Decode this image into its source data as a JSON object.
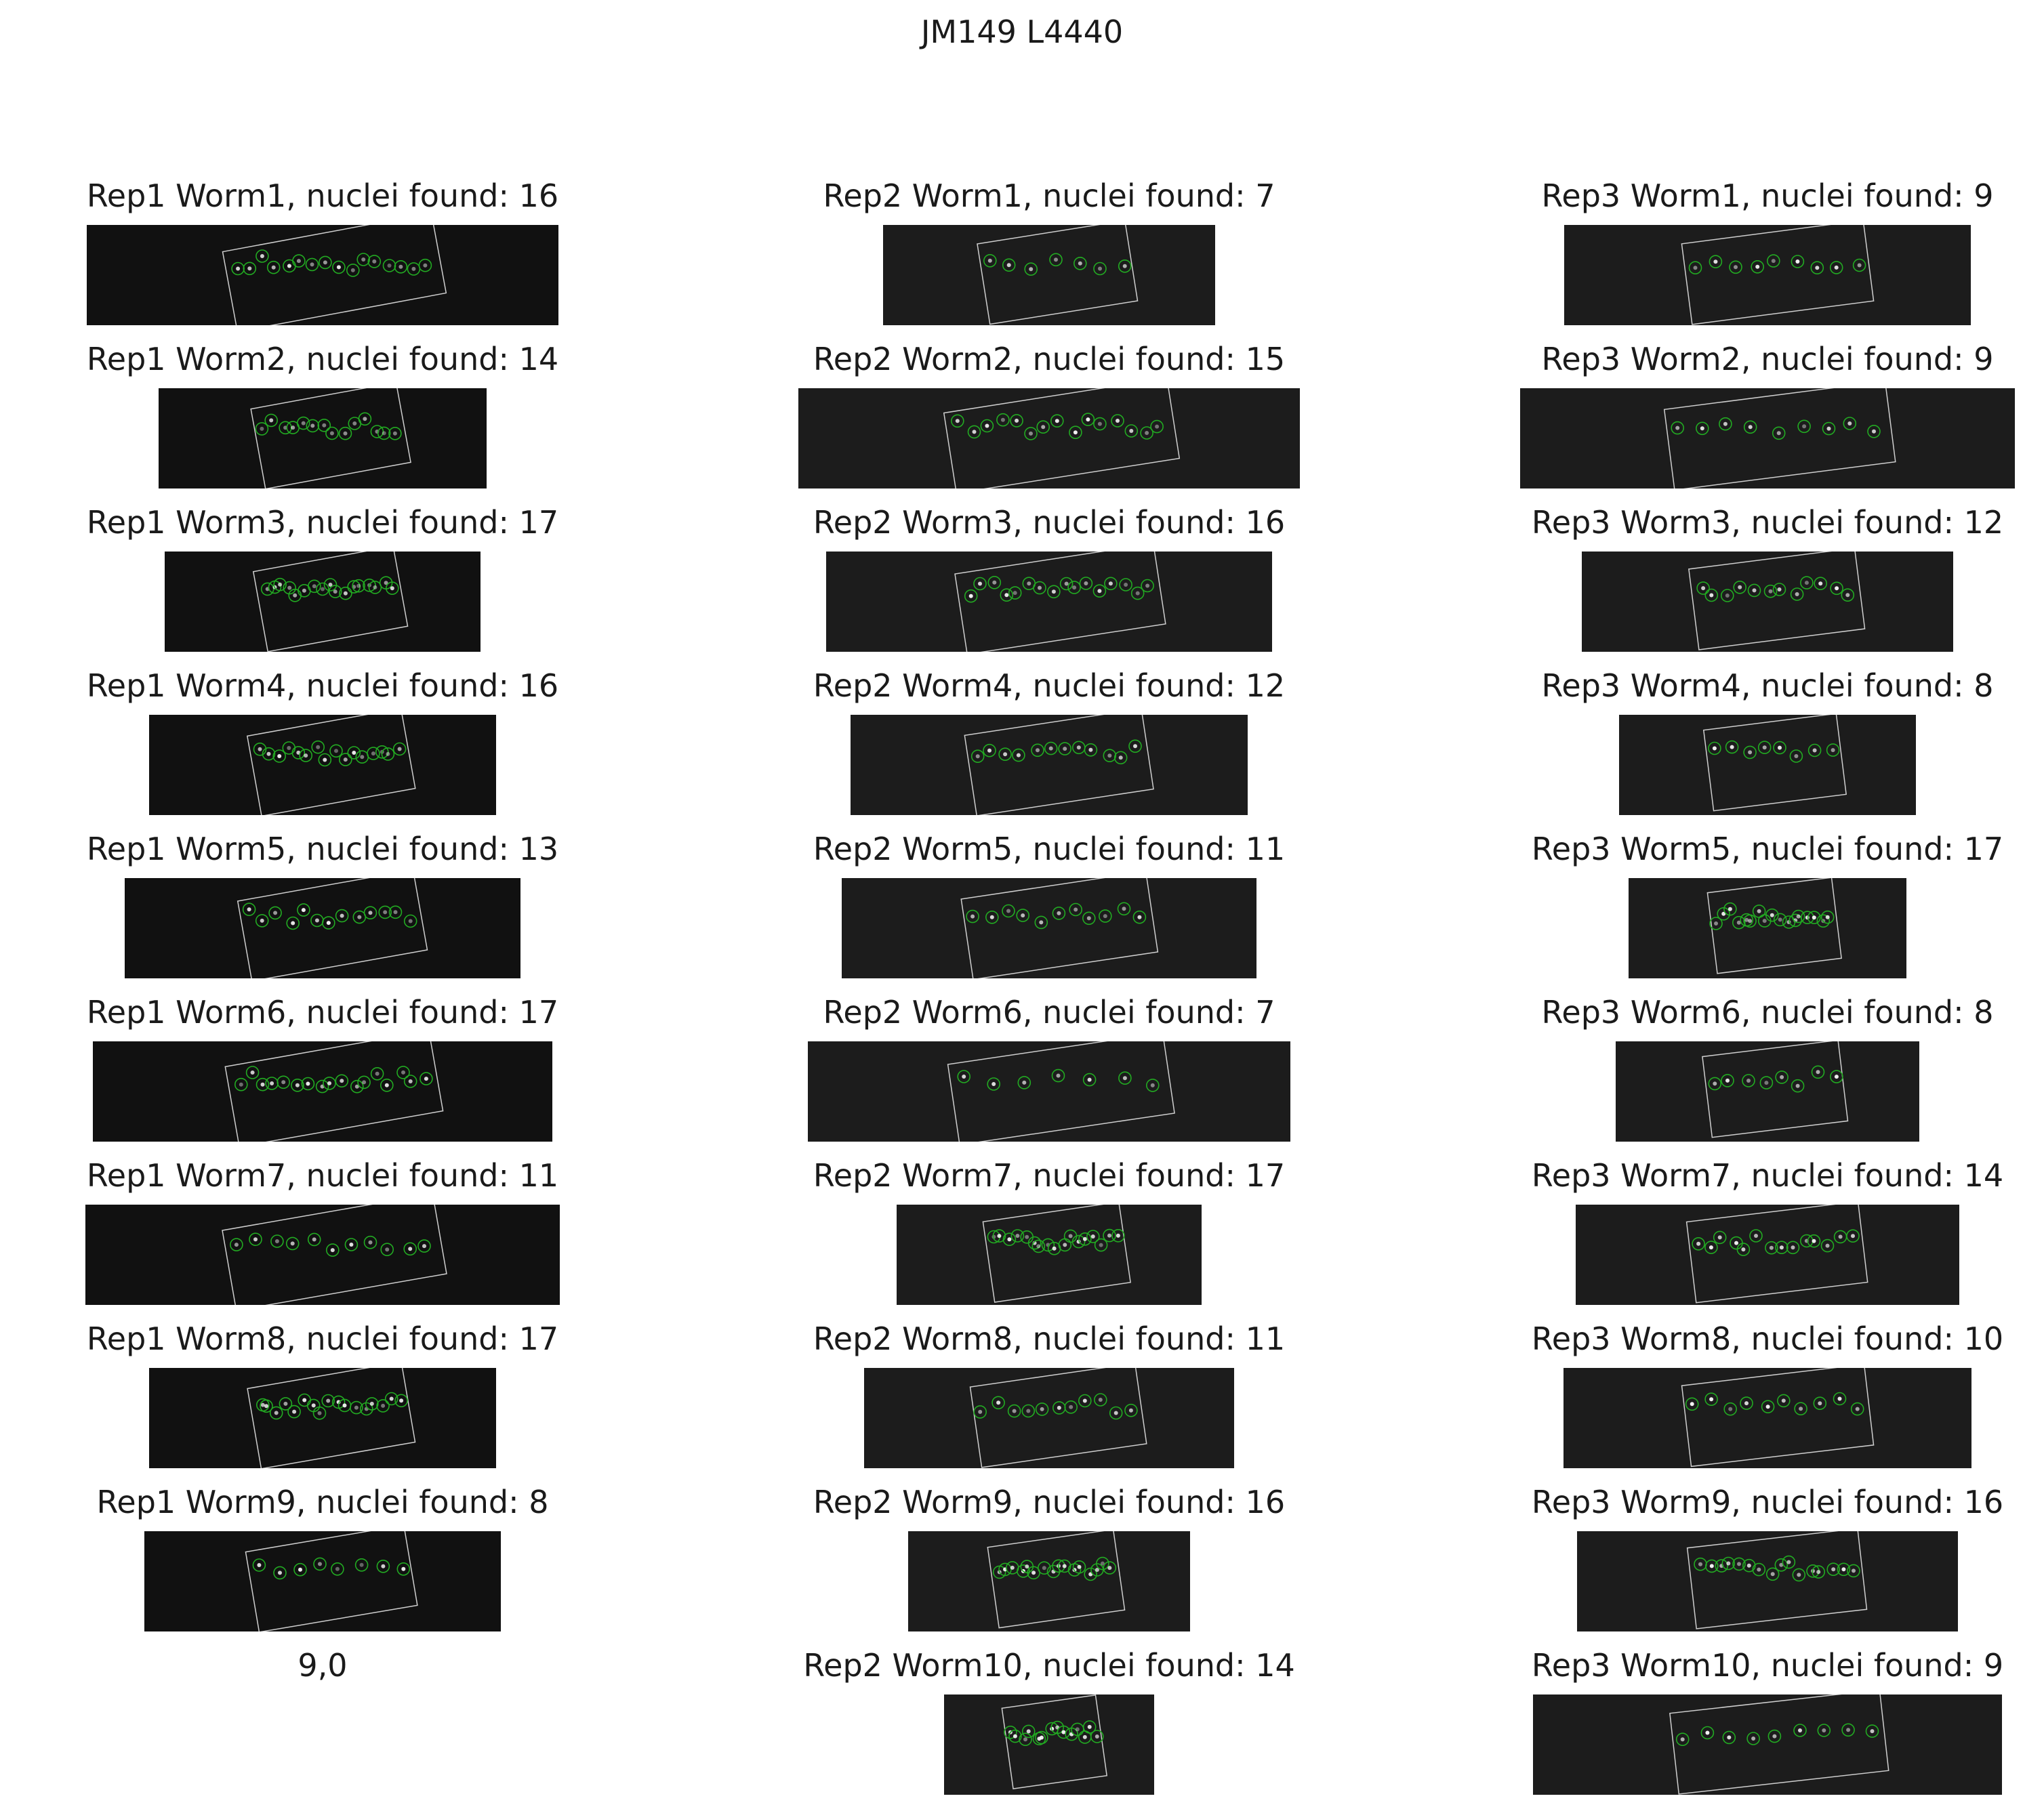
{
  "figure_title": "JM149 L4440",
  "colors": {
    "background": "#ffffff",
    "image_bg": "#0b0b0b",
    "nucleus_circle": "#22aa22",
    "roi_outline": "#cfcfcf",
    "nucleus_spot": "#ffffff"
  },
  "columns": [
    {
      "rep": "Rep1",
      "panels": [
        {
          "title": "Rep1 Worm1, nuclei found: 16",
          "nuclei": 16
        },
        {
          "title": "Rep1 Worm2, nuclei found: 14",
          "nuclei": 14
        },
        {
          "title": "Rep1 Worm3, nuclei found: 17",
          "nuclei": 17
        },
        {
          "title": "Rep1 Worm4, nuclei found: 16",
          "nuclei": 16
        },
        {
          "title": "Rep1 Worm5, nuclei found: 13",
          "nuclei": 13
        },
        {
          "title": "Rep1 Worm6, nuclei found: 17",
          "nuclei": 17
        },
        {
          "title": "Rep1 Worm7, nuclei found: 11",
          "nuclei": 11
        },
        {
          "title": "Rep1 Worm8, nuclei found: 17",
          "nuclei": 17
        },
        {
          "title": "Rep1 Worm9, nuclei found: 8",
          "nuclei": 8
        }
      ],
      "empty_label": "9,0"
    },
    {
      "rep": "Rep2",
      "panels": [
        {
          "title": "Rep2 Worm1, nuclei found: 7",
          "nuclei": 7
        },
        {
          "title": "Rep2 Worm2, nuclei found: 15",
          "nuclei": 15
        },
        {
          "title": "Rep2 Worm3, nuclei found: 16",
          "nuclei": 16
        },
        {
          "title": "Rep2 Worm4, nuclei found: 12",
          "nuclei": 12
        },
        {
          "title": "Rep2 Worm5, nuclei found: 11",
          "nuclei": 11
        },
        {
          "title": "Rep2 Worm6, nuclei found: 7",
          "nuclei": 7
        },
        {
          "title": "Rep2 Worm7, nuclei found: 17",
          "nuclei": 17
        },
        {
          "title": "Rep2 Worm8, nuclei found: 11",
          "nuclei": 11
        },
        {
          "title": "Rep2 Worm9, nuclei found: 16",
          "nuclei": 16
        },
        {
          "title": "Rep2 Worm10, nuclei found: 14",
          "nuclei": 14
        }
      ]
    },
    {
      "rep": "Rep3",
      "panels": [
        {
          "title": "Rep3 Worm1, nuclei found: 9",
          "nuclei": 9
        },
        {
          "title": "Rep3 Worm2, nuclei found: 9",
          "nuclei": 9
        },
        {
          "title": "Rep3 Worm3, nuclei found: 12",
          "nuclei": 12
        },
        {
          "title": "Rep3 Worm4, nuclei found: 8",
          "nuclei": 8
        },
        {
          "title": "Rep3 Worm5, nuclei found: 17",
          "nuclei": 17
        },
        {
          "title": "Rep3 Worm6, nuclei found: 8",
          "nuclei": 8
        },
        {
          "title": "Rep3 Worm7, nuclei found: 14",
          "nuclei": 14
        },
        {
          "title": "Rep3 Worm8, nuclei found: 10",
          "nuclei": 10
        },
        {
          "title": "Rep3 Worm9, nuclei found: 16",
          "nuclei": 16
        },
        {
          "title": "Rep3 Worm10, nuclei found: 9",
          "nuclei": 9
        }
      ]
    }
  ]
}
